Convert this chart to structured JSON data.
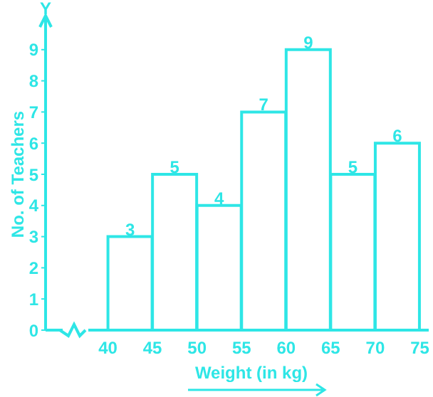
{
  "chart_data": {
    "type": "histogram",
    "xlabel": "Weight (in kg)",
    "ylabel": "No. of Teachers",
    "annotations": [
      "Y"
    ],
    "bins": [
      40,
      45,
      50,
      55,
      60,
      65,
      70,
      75
    ],
    "values": [
      3,
      5,
      4,
      7,
      9,
      5,
      6
    ],
    "color": "#2ee6e6",
    "xlim": [
      33,
      76
    ],
    "xticks": [
      40,
      45,
      50,
      55,
      60,
      65,
      70,
      75
    ],
    "ylim": [
      0,
      10
    ],
    "yticks": [
      0,
      1,
      2,
      3,
      4,
      5,
      6,
      7,
      8,
      9
    ],
    "data_labels": true,
    "grid": false,
    "legend": false
  }
}
